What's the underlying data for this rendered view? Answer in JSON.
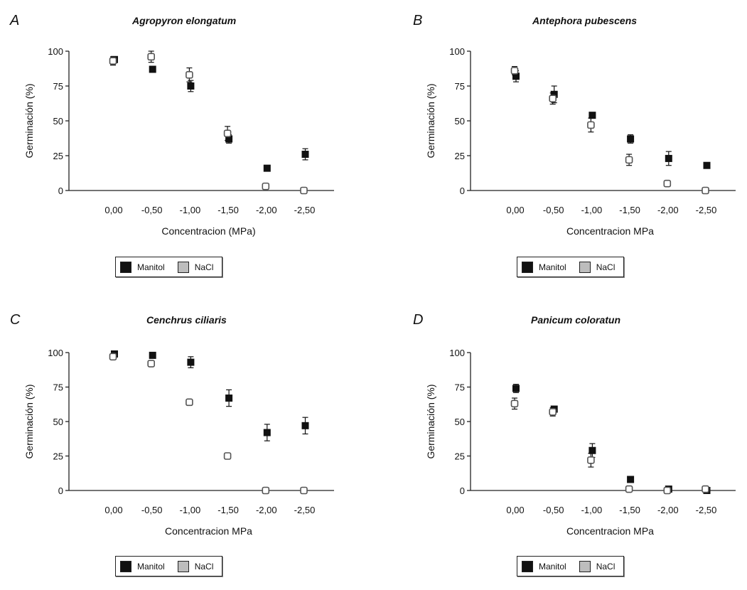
{
  "chart_data": [
    {
      "type": "scatter",
      "panel_letter": "A",
      "title": "Agropyron elongatum",
      "xlabel": "Concentracion (MPa)",
      "ylabel": "Germinación (%)",
      "categories": [
        "0,00",
        "-0,50",
        "-1,00",
        "-1,50",
        "-2,00",
        "-2,50"
      ],
      "yticks": [
        "0",
        "25",
        "50",
        "75",
        "100"
      ],
      "ylim": [
        0,
        100
      ],
      "legend": [
        "Manitol",
        "NaCl"
      ],
      "series": [
        {
          "name": "Manitol",
          "values": [
            94,
            87,
            75,
            37,
            16,
            26
          ],
          "errors": [
            0,
            2,
            4,
            3,
            1,
            4
          ]
        },
        {
          "name": "NaCl",
          "values": [
            93,
            96,
            83,
            41,
            3,
            0
          ],
          "errors": [
            3,
            4,
            5,
            5,
            1,
            0
          ]
        }
      ]
    },
    {
      "type": "scatter",
      "panel_letter": "B",
      "title": "Antephora pubescens",
      "xlabel": "Concentracion MPa",
      "ylabel": "Germinación (%)",
      "categories": [
        "0,00",
        "-0,50",
        "-1,00",
        "-1,50",
        "-2,00",
        "-2,50"
      ],
      "yticks": [
        "0",
        "25",
        "50",
        "75",
        "100"
      ],
      "ylim": [
        0,
        100
      ],
      "legend": [
        "Manitol",
        "NaCl"
      ],
      "series": [
        {
          "name": "Manitol",
          "values": [
            82,
            69,
            54,
            37,
            23,
            18
          ],
          "errors": [
            4,
            6,
            2,
            3,
            5,
            1
          ]
        },
        {
          "name": "NaCl",
          "values": [
            86,
            66,
            47,
            22,
            5,
            0
          ],
          "errors": [
            3,
            4,
            5,
            4,
            2,
            0
          ]
        }
      ]
    },
    {
      "type": "scatter",
      "panel_letter": "C",
      "title": "Cenchrus ciliaris",
      "xlabel": "Concentracion MPa",
      "ylabel": "Germinación (%)",
      "categories": [
        "0,00",
        "-0,50",
        "-1,00",
        "-1,50",
        "-2,00",
        "-2,50"
      ],
      "yticks": [
        "0",
        "25",
        "50",
        "75",
        "100"
      ],
      "ylim": [
        0,
        100
      ],
      "legend": [
        "Manitol",
        "NaCl"
      ],
      "series": [
        {
          "name": "Manitol",
          "values": [
            99,
            98,
            93,
            67,
            42,
            47
          ],
          "errors": [
            1,
            1,
            4,
            6,
            6,
            6
          ]
        },
        {
          "name": "NaCl",
          "values": [
            97,
            92,
            64,
            25,
            0,
            0
          ],
          "errors": [
            2,
            2,
            2,
            1,
            0,
            0
          ]
        }
      ]
    },
    {
      "type": "scatter",
      "panel_letter": "D",
      "title": "Panicum coloratun",
      "xlabel": "Concentracion MPa",
      "ylabel": "Germinación (%)",
      "categories": [
        "0,00",
        "-0,50",
        "-1,00",
        "-1,50",
        "-2,00",
        "-2,50"
      ],
      "yticks": [
        "0",
        "25",
        "50",
        "75",
        "100"
      ],
      "ylim": [
        0,
        100
      ],
      "legend": [
        "Manitol",
        "NaCl"
      ],
      "series": [
        {
          "name": "Manitol",
          "values": [
            74,
            59,
            29,
            8,
            1,
            0
          ],
          "errors": [
            3,
            2,
            5,
            2,
            0,
            0
          ]
        },
        {
          "name": "NaCl",
          "values": [
            63,
            57,
            22,
            1,
            0,
            1
          ],
          "errors": [
            4,
            3,
            5,
            1,
            0,
            0
          ]
        }
      ]
    }
  ]
}
